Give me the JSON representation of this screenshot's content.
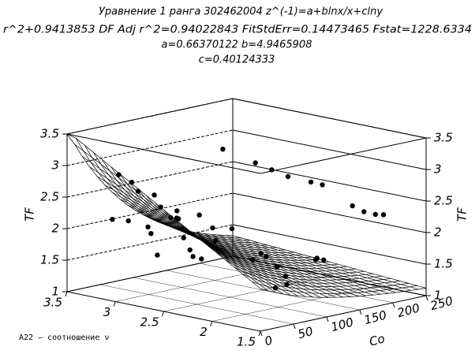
{
  "chart_data": {
    "type": "scatter3d",
    "title": [
      "Уравнение 1 ранга 302462004 z^(-1)=a+blnx/x+clny",
      "r^2+0.9413853 DF Adj r^2=0.94022843 FitStdErr=0.14473465 Fstat=1228.6334",
      "a=0.66370122 b=4.9465908",
      "c=0.40124333"
    ],
    "xlabel": "A22 – соотношение ν",
    "ylabel": "Co",
    "zlabel": "TF",
    "xlim": [
      1.5,
      3.5
    ],
    "xticks": [
      1.5,
      2,
      2.5,
      3,
      3.5
    ],
    "ylim": [
      0,
      250
    ],
    "yticks": [
      0,
      50,
      100,
      150,
      200,
      250
    ],
    "zlim": [
      1,
      3.5
    ],
    "zticks": [
      1,
      1.5,
      2,
      2.5,
      3,
      3.5
    ],
    "color": "#000000",
    "x": [
      3.0,
      2.9,
      2.8,
      2.7,
      2.6,
      2.5,
      2.4,
      2.45,
      2.6,
      2.8,
      2.7,
      2.9,
      3.1,
      2.5,
      2.4,
      2.3,
      2.6,
      2.2,
      2.1,
      2.0,
      2.2,
      2.35,
      2.3,
      2.1,
      2.0,
      1.9,
      1.8,
      1.75,
      1.8,
      1.75,
      1.7,
      1.85,
      1.6,
      1.65,
      1.6,
      1.7,
      1.68,
      1.75,
      1.6,
      1.55,
      1.5,
      1.55
    ],
    "y": [
      5,
      10,
      5,
      15,
      10,
      20,
      5,
      15,
      25,
      20,
      10,
      5,
      10,
      30,
      25,
      15,
      5,
      30,
      20,
      30,
      10,
      35,
      60,
      80,
      90,
      100,
      120,
      130,
      200,
      210,
      215,
      190,
      100,
      105,
      110,
      30,
      35,
      25,
      40,
      45,
      40,
      30
    ],
    "z": [
      3.0,
      2.9,
      2.8,
      2.75,
      2.6,
      2.55,
      2.5,
      2.45,
      2.4,
      2.2,
      2.15,
      2.3,
      2.25,
      2.1,
      1.95,
      1.9,
      1.85,
      2.35,
      2.2,
      2.4,
      2.6,
      1.8,
      3.5,
      3.3,
      3.2,
      3.1,
      3.0,
      2.95,
      2.35,
      2.3,
      2.3,
      2.45,
      1.9,
      1.85,
      1.85,
      2.1,
      2.05,
      2.0,
      1.9,
      1.75,
      1.65,
      1.6
    ]
  }
}
